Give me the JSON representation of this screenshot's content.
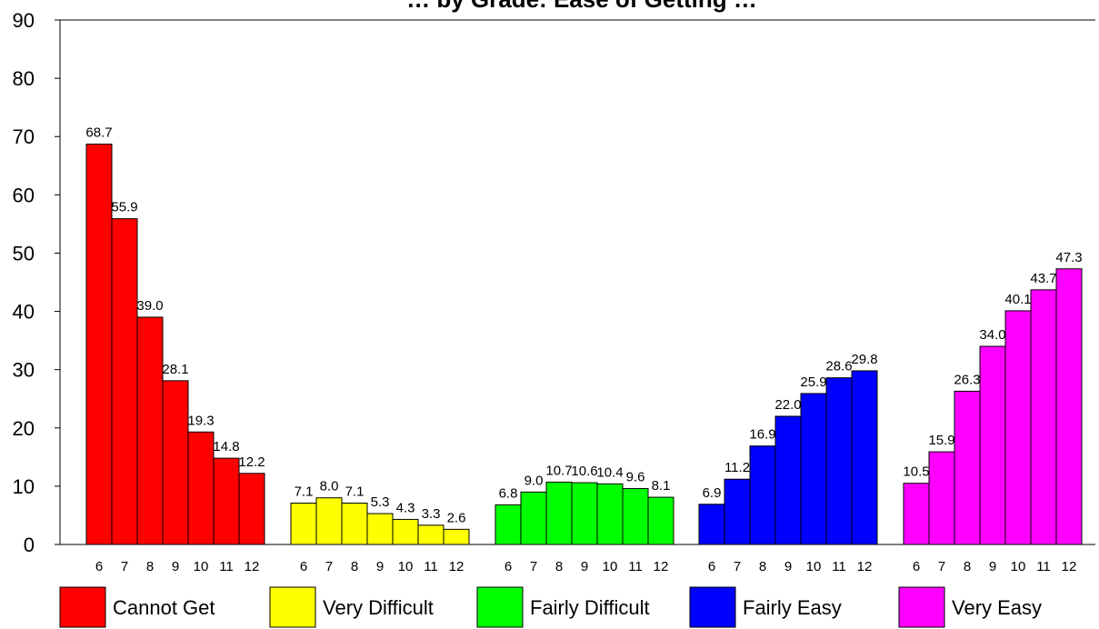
{
  "chart_data": {
    "type": "bar",
    "title": "… by Grade: Ease of Getting …",
    "xlabel": "",
    "ylabel": "",
    "ylim": [
      0,
      90
    ],
    "yticks": [
      0,
      10,
      20,
      30,
      40,
      50,
      60,
      70,
      80,
      90
    ],
    "categories": [
      "6",
      "7",
      "8",
      "9",
      "10",
      "11",
      "12"
    ],
    "legend_position": "bottom",
    "grid": false,
    "series": [
      {
        "name": "Cannot Get",
        "color": "#ff0000",
        "values": [
          68.7,
          55.9,
          39.0,
          28.1,
          19.3,
          14.8,
          12.2
        ]
      },
      {
        "name": "Very Difficult",
        "color": "#ffff00",
        "values": [
          7.1,
          8.0,
          7.1,
          5.3,
          4.3,
          3.3,
          2.6
        ]
      },
      {
        "name": "Fairly Difficult",
        "color": "#00ff00",
        "values": [
          6.8,
          9.0,
          10.7,
          10.6,
          10.4,
          9.6,
          8.1
        ]
      },
      {
        "name": "Fairly Easy",
        "color": "#0000ff",
        "values": [
          6.9,
          11.2,
          16.9,
          22.0,
          25.9,
          28.6,
          29.8
        ]
      },
      {
        "name": "Very Easy",
        "color": "#ff00ff",
        "values": [
          10.5,
          15.9,
          26.3,
          34.0,
          40.1,
          43.7,
          47.3
        ]
      }
    ]
  }
}
